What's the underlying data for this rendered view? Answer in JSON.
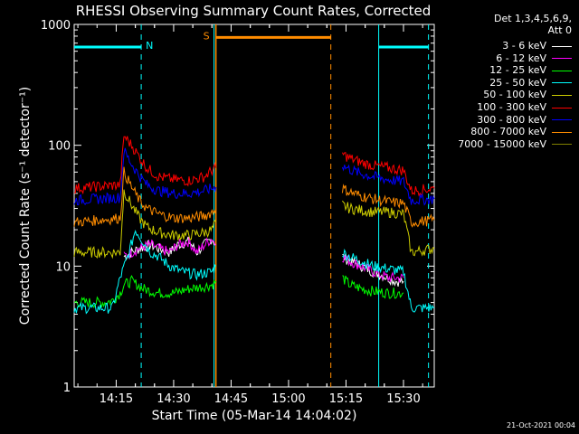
{
  "chart_data": {
    "type": "line",
    "title": "RHESSI Observing Summary Count Rates, Corrected",
    "xlabel": "Start Time (05-Mar-14 14:04:02)",
    "ylabel": "Corrected Count Rate (s⁻¹ detector⁻¹)",
    "yscale": "log",
    "ylim": [
      1,
      1000
    ],
    "xlim_minutes": [
      0,
      94
    ],
    "x_tick_labels": [
      "14:15",
      "14:30",
      "14:45",
      "15:00",
      "15:15",
      "15:30"
    ],
    "y_tick_labels": [
      "1",
      "10",
      "100",
      "1000"
    ],
    "legend_header": [
      "Det 1,3,4,5,6,9,",
      "Att 0"
    ],
    "legend_position": "right",
    "flags": [
      {
        "label": "N",
        "color": "#00ffff",
        "level": 650
      },
      {
        "label": "S",
        "color": "#ff8c00",
        "level": 780
      }
    ],
    "series": [
      {
        "name": "3 - 6 keV",
        "color": "#ffffff",
        "values": [
          [
            13,
            12
          ],
          [
            15,
            13
          ],
          [
            17,
            14
          ],
          [
            20,
            15
          ],
          [
            22,
            14
          ],
          [
            25,
            13
          ],
          [
            27,
            15
          ],
          [
            30,
            16
          ],
          [
            32,
            13
          ],
          [
            34,
            15
          ],
          [
            36,
            17
          ],
          [
            37,
            15
          ],
          [
            70,
            12
          ],
          [
            72,
            11
          ],
          [
            75,
            10
          ],
          [
            78,
            9
          ],
          [
            80,
            8.5
          ],
          [
            82,
            8
          ],
          [
            84,
            7.5
          ],
          [
            86,
            7.5
          ]
        ]
      },
      {
        "name": "6 - 12 keV",
        "color": "#ff00ff",
        "values": [
          [
            13,
            12
          ],
          [
            15,
            13
          ],
          [
            17,
            14
          ],
          [
            20,
            15
          ],
          [
            22,
            14
          ],
          [
            25,
            13
          ],
          [
            27,
            15
          ],
          [
            30,
            16
          ],
          [
            32,
            13
          ],
          [
            34,
            15
          ],
          [
            36,
            17
          ],
          [
            37,
            15
          ],
          [
            70,
            12
          ],
          [
            72,
            11
          ],
          [
            75,
            10
          ],
          [
            78,
            9
          ],
          [
            80,
            8.5
          ],
          [
            82,
            8
          ],
          [
            84,
            8
          ],
          [
            86,
            8
          ]
        ]
      },
      {
        "name": "12 - 25 keV",
        "color": "#00ff00",
        "values": [
          [
            0,
            5
          ],
          [
            6,
            5
          ],
          [
            8,
            5
          ],
          [
            10,
            5.2
          ],
          [
            12,
            6
          ],
          [
            13,
            7
          ],
          [
            15,
            7.5
          ],
          [
            18,
            6.5
          ],
          [
            22,
            6
          ],
          [
            26,
            6
          ],
          [
            30,
            6.5
          ],
          [
            34,
            6.8
          ],
          [
            36,
            7
          ],
          [
            37,
            7.5
          ],
          [
            70,
            8
          ],
          [
            72,
            7
          ],
          [
            75,
            6.5
          ],
          [
            78,
            6.2
          ],
          [
            82,
            6
          ],
          [
            86,
            6
          ]
        ]
      },
      {
        "name": "25 - 50 keV",
        "color": "#00ffff",
        "values": [
          [
            0,
            4.5
          ],
          [
            10,
            4.5
          ],
          [
            12,
            8
          ],
          [
            14,
            12
          ],
          [
            16,
            20
          ],
          [
            18,
            16
          ],
          [
            20,
            13
          ],
          [
            22,
            12
          ],
          [
            25,
            10
          ],
          [
            28,
            9
          ],
          [
            32,
            8.5
          ],
          [
            36,
            9
          ],
          [
            37,
            10
          ],
          [
            70,
            13
          ],
          [
            72,
            12
          ],
          [
            75,
            11
          ],
          [
            78,
            10
          ],
          [
            82,
            9.5
          ],
          [
            86,
            9
          ],
          [
            88,
            4.5
          ],
          [
            94,
            4.5
          ]
        ]
      },
      {
        "name": "50 - 100 keV",
        "color": "#cccc00",
        "values": [
          [
            0,
            13
          ],
          [
            12,
            13
          ],
          [
            13,
            42
          ],
          [
            15,
            32
          ],
          [
            17,
            25
          ],
          [
            19,
            21
          ],
          [
            22,
            19
          ],
          [
            26,
            18
          ],
          [
            30,
            18
          ],
          [
            34,
            19
          ],
          [
            36,
            20
          ],
          [
            37,
            23
          ],
          [
            70,
            32
          ],
          [
            72,
            30
          ],
          [
            75,
            29
          ],
          [
            78,
            28
          ],
          [
            82,
            28
          ],
          [
            86,
            27
          ],
          [
            88,
            13
          ],
          [
            94,
            14
          ]
        ]
      },
      {
        "name": "100 - 300 keV",
        "color": "#ff0000",
        "values": [
          [
            0,
            44
          ],
          [
            12,
            47
          ],
          [
            13,
            120
          ],
          [
            15,
            100
          ],
          [
            17,
            80
          ],
          [
            19,
            65
          ],
          [
            22,
            55
          ],
          [
            26,
            52
          ],
          [
            30,
            51
          ],
          [
            34,
            55
          ],
          [
            36,
            62
          ],
          [
            37,
            65
          ],
          [
            70,
            85
          ],
          [
            72,
            78
          ],
          [
            75,
            72
          ],
          [
            78,
            68
          ],
          [
            82,
            65
          ],
          [
            86,
            62
          ],
          [
            88,
            42
          ],
          [
            94,
            44
          ]
        ]
      },
      {
        "name": "300 - 800 keV",
        "color": "#0000ff",
        "values": [
          [
            0,
            35
          ],
          [
            12,
            37
          ],
          [
            13,
            90
          ],
          [
            15,
            70
          ],
          [
            17,
            56
          ],
          [
            19,
            47
          ],
          [
            22,
            42
          ],
          [
            26,
            40
          ],
          [
            30,
            40
          ],
          [
            34,
            42
          ],
          [
            36,
            44
          ],
          [
            37,
            45
          ],
          [
            70,
            68
          ],
          [
            72,
            63
          ],
          [
            75,
            58
          ],
          [
            78,
            55
          ],
          [
            82,
            52
          ],
          [
            86,
            50
          ],
          [
            88,
            35
          ],
          [
            94,
            36
          ]
        ]
      },
      {
        "name": "800 - 7000 keV",
        "color": "#ff8c00",
        "values": [
          [
            0,
            23
          ],
          [
            12,
            25
          ],
          [
            13,
            60
          ],
          [
            15,
            45
          ],
          [
            17,
            35
          ],
          [
            19,
            30
          ],
          [
            22,
            27
          ],
          [
            26,
            25
          ],
          [
            30,
            25
          ],
          [
            34,
            26
          ],
          [
            36,
            28
          ],
          [
            37,
            30
          ],
          [
            70,
            44
          ],
          [
            72,
            41
          ],
          [
            75,
            38
          ],
          [
            78,
            36
          ],
          [
            82,
            34
          ],
          [
            86,
            33
          ],
          [
            88,
            23
          ],
          [
            94,
            24
          ]
        ]
      },
      {
        "name": "7000 - 15000 keV",
        "color": "#808000",
        "values": []
      }
    ],
    "cyan_vlines_dashed": [
      17.5,
      92.5
    ],
    "cyan_vlines_solid": [
      36.5,
      79.5
    ],
    "orange_vlines_dashed": [
      67
    ],
    "orange_vlines_solid": [
      37
    ]
  },
  "stamp": "21-Oct-2021 00:04"
}
